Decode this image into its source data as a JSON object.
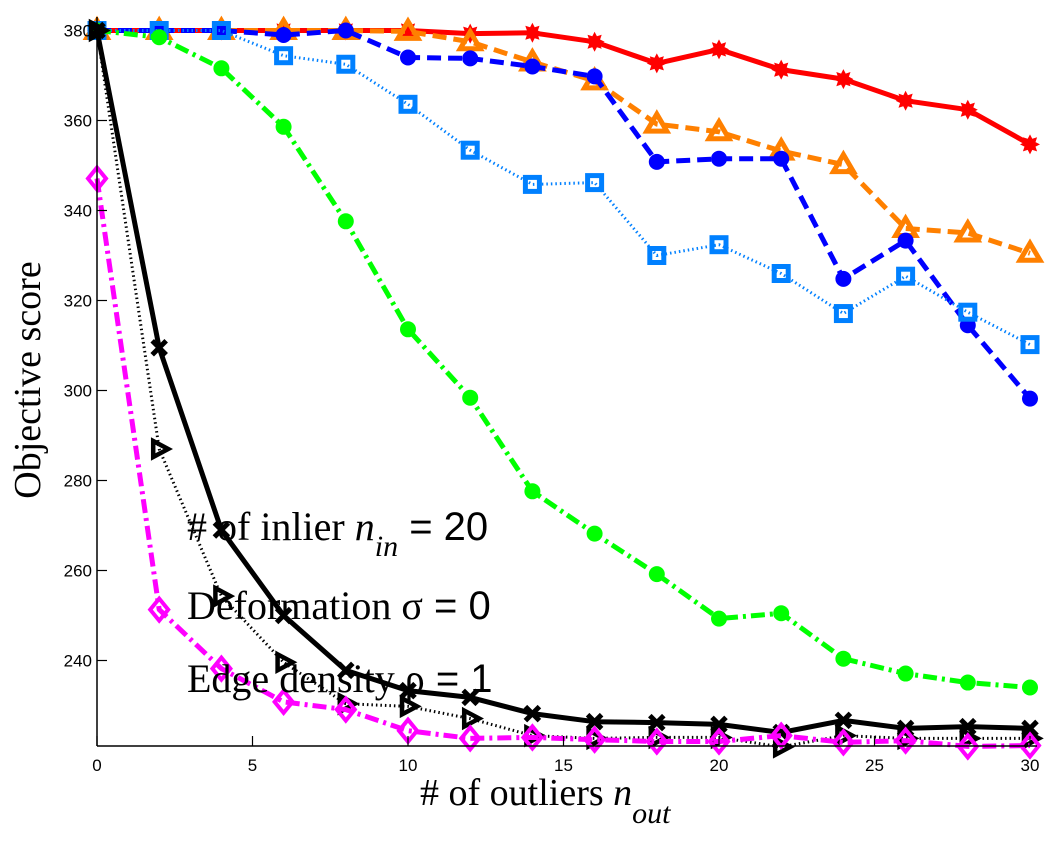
{
  "chart_data": {
    "type": "line",
    "title": "",
    "xlabel": "# of outliers n_out",
    "xlabel_main": "# of outliers ",
    "xlabel_var": "n",
    "xlabel_sub": "out",
    "ylabel": "Objective score",
    "xlim": [
      0,
      30
    ],
    "ylim": [
      221,
      383
    ],
    "grid": false,
    "legend": "none",
    "x_ticks": [
      0,
      5,
      10,
      15,
      20,
      25,
      30
    ],
    "x_tick_labels": [
      "0",
      "5",
      "10",
      "15",
      "20",
      "25",
      "30"
    ],
    "y_ticks": [
      240,
      260,
      280,
      300,
      320,
      340,
      360,
      380
    ],
    "y_tick_labels": [
      "240",
      "260",
      "280",
      "300",
      "320",
      "340",
      "360",
      "380"
    ],
    "x": [
      0,
      2,
      4,
      6,
      8,
      10,
      12,
      14,
      16,
      18,
      20,
      22,
      24,
      26,
      28,
      30
    ],
    "series": [
      {
        "name": "red-solid-star",
        "color": "#ff0000",
        "dash": "solid",
        "marker": "star",
        "values": [
          380,
          380,
          380,
          380,
          380,
          380,
          379.3,
          379.5,
          377.5,
          372.7,
          375.8,
          371.3,
          369.2,
          364.4,
          362.4,
          354.7
        ]
      },
      {
        "name": "orange-dashed-triangle",
        "color": "#ff8000",
        "dash": "dashed",
        "marker": "triangle",
        "values": [
          380,
          380,
          380,
          380,
          380,
          379.8,
          377.5,
          373,
          368.8,
          359.2,
          357.5,
          353.2,
          350.2,
          336,
          335,
          330.5
        ]
      },
      {
        "name": "blue-dashed-circle",
        "color": "#0000ff",
        "dash": "dashed",
        "marker": "circle",
        "values": [
          380,
          380,
          380,
          379,
          380,
          374,
          373.8,
          372,
          369.8,
          350.8,
          351.5,
          351.5,
          324.8,
          333.3,
          314.5,
          298.2
        ]
      },
      {
        "name": "lightblue-dotted-square",
        "color": "#0080ff",
        "dash": "dotted",
        "marker": "square",
        "values": [
          380,
          380,
          380,
          374.4,
          372.5,
          363.6,
          353.4,
          345.8,
          346.2,
          330,
          332.4,
          326,
          317.1,
          325.4,
          317.4,
          310.2
        ]
      },
      {
        "name": "green-dashdot-circle",
        "color": "#00ff00",
        "dash": "dashdot",
        "marker": "dot",
        "values": [
          380,
          378.5,
          371.6,
          358.6,
          337.6,
          313.6,
          298.4,
          277.6,
          268.2,
          259.2,
          249.3,
          250.5,
          240.4,
          237.1,
          235.1,
          234
        ]
      },
      {
        "name": "black-solid-x",
        "color": "#000000",
        "dash": "solid",
        "marker": "x",
        "values": [
          380,
          309.5,
          269,
          250,
          237.8,
          233.3,
          231.8,
          228.2,
          226.4,
          226.2,
          225.8,
          224,
          226.7,
          224.9,
          225.3,
          224.9
        ]
      },
      {
        "name": "black-dotted-triangle",
        "color": "#000000",
        "dash": "dotted",
        "marker": "triangle-right",
        "values": [
          380,
          287,
          254.3,
          239.6,
          230.4,
          229.8,
          227.1,
          223.3,
          222.7,
          222.9,
          222.9,
          220.8,
          223.3,
          222.7,
          222.7,
          222.7
        ]
      },
      {
        "name": "magenta-dashdot-diamond",
        "color": "#ff00ff",
        "dash": "dashdot",
        "marker": "diamond",
        "values": [
          347.1,
          251.3,
          238.2,
          230.8,
          229.1,
          224.4,
          222.7,
          222.9,
          222.4,
          222,
          222,
          223.3,
          221.8,
          222.2,
          220.9,
          221.1
        ]
      }
    ],
    "annotations": [
      {
        "text_main": "# of inlier ",
        "text_var": "n",
        "text_sub": "in",
        "text_value": " = 20"
      },
      {
        "text_main": "Deformation σ",
        "text_value": " = 0"
      },
      {
        "text_main": "Edge density ρ",
        "text_value": " = 1"
      }
    ]
  }
}
